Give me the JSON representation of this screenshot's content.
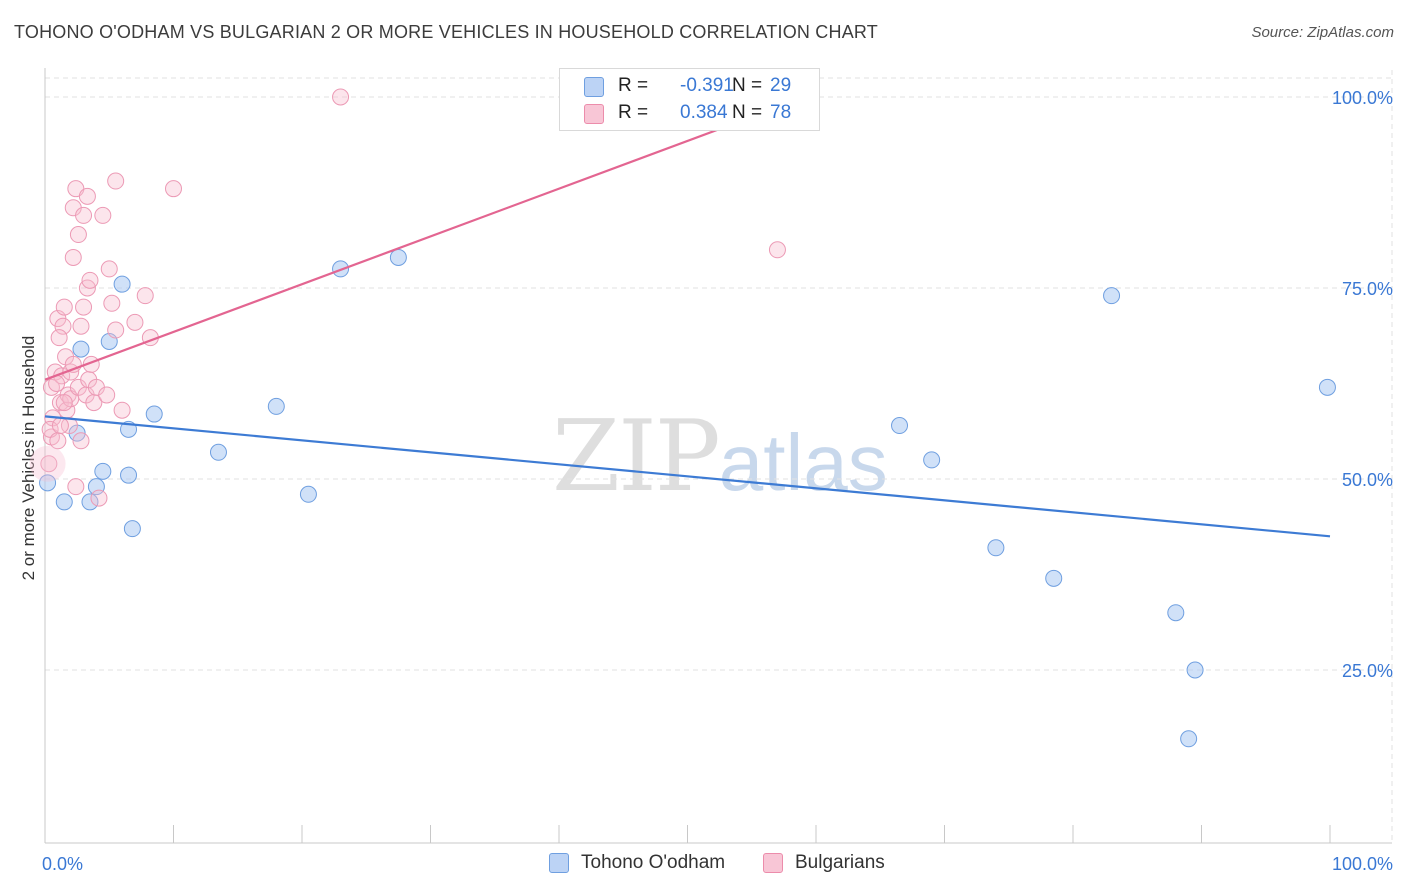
{
  "title": "TOHONO O'ODHAM VS BULGARIAN 2 OR MORE VEHICLES IN HOUSEHOLD CORRELATION CHART",
  "source": "Source: ZipAtlas.com",
  "watermark": {
    "zip": "ZIP",
    "atlas": "atlas"
  },
  "legend": {
    "series": [
      {
        "name": "Tohono O'odham",
        "r_label": "R =",
        "r_value": "-0.391",
        "n_label": "N =",
        "n_value": "29",
        "color": "#6f9fe0",
        "fill": "#bcd3f5"
      },
      {
        "name": "Bulgarians",
        "r_label": "R =",
        "r_value": "0.384",
        "n_label": "N =",
        "n_value": "78",
        "color": "#ec8cab",
        "fill": "#f8c6d6"
      }
    ]
  },
  "chart_data": {
    "type": "scatter",
    "title": "TOHONO O'ODHAM VS BULGARIAN 2 OR MORE VEHICLES IN HOUSEHOLD CORRELATION CHART",
    "xlabel": "",
    "ylabel": "2 or more Vehicles in Household",
    "xlim": [
      0,
      100
    ],
    "ylim": [
      0,
      102
    ],
    "x_tick_labels": [
      {
        "value": 0,
        "label": "0.0%"
      },
      {
        "value": 100,
        "label": "100.0%"
      }
    ],
    "y_tick_labels": [
      {
        "value": 25,
        "label": "25.0%"
      },
      {
        "value": 50,
        "label": "50.0%"
      },
      {
        "value": 75,
        "label": "75.0%"
      },
      {
        "value": 100,
        "label": "100.0%"
      }
    ],
    "series": [
      {
        "name": "Tohono O'odham",
        "color": "#3d7bd4",
        "trend": {
          "x": [
            0,
            100
          ],
          "y": [
            58.2,
            42.5
          ]
        },
        "points": [
          {
            "x": 0.2,
            "y": 49.5
          },
          {
            "x": 1.5,
            "y": 47.0
          },
          {
            "x": 3.5,
            "y": 47.0
          },
          {
            "x": 4.0,
            "y": 49.0
          },
          {
            "x": 4.5,
            "y": 51.0
          },
          {
            "x": 2.5,
            "y": 56.0
          },
          {
            "x": 2.8,
            "y": 67.0
          },
          {
            "x": 5.0,
            "y": 68.0
          },
          {
            "x": 6.5,
            "y": 56.5
          },
          {
            "x": 6.0,
            "y": 75.5
          },
          {
            "x": 6.5,
            "y": 50.5
          },
          {
            "x": 6.8,
            "y": 43.5
          },
          {
            "x": 8.5,
            "y": 58.5
          },
          {
            "x": 13.5,
            "y": 53.5
          },
          {
            "x": 18.0,
            "y": 59.5
          },
          {
            "x": 20.5,
            "y": 48.0
          },
          {
            "x": 23.0,
            "y": 77.5
          },
          {
            "x": 27.5,
            "y": 79.0
          },
          {
            "x": 66.5,
            "y": 57.0
          },
          {
            "x": 69.0,
            "y": 52.5
          },
          {
            "x": 74.0,
            "y": 41.0
          },
          {
            "x": 78.5,
            "y": 37.0
          },
          {
            "x": 83.0,
            "y": 74.0
          },
          {
            "x": 88.0,
            "y": 32.5
          },
          {
            "x": 89.5,
            "y": 25.0
          },
          {
            "x": 89.0,
            "y": 16.0
          },
          {
            "x": 99.8,
            "y": 62.0
          }
        ]
      },
      {
        "name": "Bulgarians",
        "color": "#e36591",
        "trend": {
          "x": [
            0,
            60
          ],
          "y": [
            63.0,
            100.5
          ]
        },
        "points": [
          {
            "x": 0.3,
            "y": 52.0
          },
          {
            "x": 0.5,
            "y": 55.5
          },
          {
            "x": 0.6,
            "y": 58.0
          },
          {
            "x": 0.5,
            "y": 62.0
          },
          {
            "x": 0.8,
            "y": 64.0
          },
          {
            "x": 0.4,
            "y": 56.5
          },
          {
            "x": 1.0,
            "y": 55.0
          },
          {
            "x": 1.2,
            "y": 60.0
          },
          {
            "x": 1.0,
            "y": 71.0
          },
          {
            "x": 1.4,
            "y": 70.0
          },
          {
            "x": 1.5,
            "y": 72.5
          },
          {
            "x": 1.3,
            "y": 63.5
          },
          {
            "x": 1.6,
            "y": 66.0
          },
          {
            "x": 1.8,
            "y": 61.0
          },
          {
            "x": 1.7,
            "y": 59.0
          },
          {
            "x": 1.9,
            "y": 57.0
          },
          {
            "x": 2.0,
            "y": 60.5
          },
          {
            "x": 2.0,
            "y": 64.0
          },
          {
            "x": 2.2,
            "y": 65.0
          },
          {
            "x": 2.2,
            "y": 79.0
          },
          {
            "x": 2.2,
            "y": 85.5
          },
          {
            "x": 2.4,
            "y": 88.0
          },
          {
            "x": 2.6,
            "y": 82.0
          },
          {
            "x": 2.6,
            "y": 62.0
          },
          {
            "x": 2.8,
            "y": 70.0
          },
          {
            "x": 2.8,
            "y": 55.0
          },
          {
            "x": 3.0,
            "y": 84.5
          },
          {
            "x": 3.0,
            "y": 72.5
          },
          {
            "x": 3.2,
            "y": 61.0
          },
          {
            "x": 3.4,
            "y": 63.0
          },
          {
            "x": 3.3,
            "y": 75.0
          },
          {
            "x": 3.5,
            "y": 76.0
          },
          {
            "x": 3.3,
            "y": 87.0
          },
          {
            "x": 3.6,
            "y": 65.0
          },
          {
            "x": 3.8,
            "y": 60.0
          },
          {
            "x": 4.0,
            "y": 62.0
          },
          {
            "x": 4.2,
            "y": 47.5
          },
          {
            "x": 4.5,
            "y": 84.5
          },
          {
            "x": 4.8,
            "y": 61.0
          },
          {
            "x": 5.0,
            "y": 77.5
          },
          {
            "x": 5.2,
            "y": 73.0
          },
          {
            "x": 5.5,
            "y": 69.5
          },
          {
            "x": 5.5,
            "y": 89.0
          },
          {
            "x": 6.0,
            "y": 59.0
          },
          {
            "x": 7.0,
            "y": 70.5
          },
          {
            "x": 7.8,
            "y": 74.0
          },
          {
            "x": 8.2,
            "y": 68.5
          },
          {
            "x": 10.0,
            "y": 88.0
          },
          {
            "x": 23.0,
            "y": 100.0
          },
          {
            "x": 57.0,
            "y": 80.0
          },
          {
            "x": 1.1,
            "y": 68.5
          },
          {
            "x": 1.5,
            "y": 60.0
          },
          {
            "x": 2.4,
            "y": 49.0
          },
          {
            "x": 0.9,
            "y": 62.5
          },
          {
            "x": 1.2,
            "y": 57.0
          }
        ]
      }
    ]
  }
}
